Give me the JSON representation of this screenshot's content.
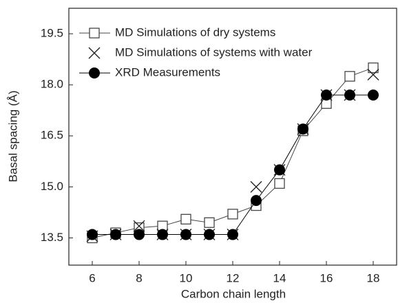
{
  "chart_data": {
    "type": "line",
    "x_label": "Carbon chain length",
    "y_label": "Basal spacing (Å)",
    "x": [
      6,
      7,
      8,
      9,
      10,
      11,
      12,
      13,
      14,
      15,
      16,
      17,
      18
    ],
    "xlim": [
      5,
      19
    ],
    "xticks": [
      6,
      8,
      10,
      12,
      14,
      16,
      18
    ],
    "ylim": [
      12.7,
      20.25
    ],
    "yticks": [
      13.5,
      {
        "value": 15,
        "label": "15.0"
      },
      16.5,
      {
        "value": 18,
        "label": "18.0"
      },
      19.5
    ],
    "series": [
      {
        "name": "MD Simulations of dry systems",
        "color": "#444444",
        "marker": "square",
        "line": true,
        "values": [
          13.5,
          13.65,
          13.8,
          13.85,
          14.05,
          13.95,
          14.2,
          14.45,
          15.1,
          16.65,
          17.45,
          18.25,
          18.5
        ]
      },
      {
        "name": "MD Simulations of systems with water",
        "color": "#222222",
        "marker": "x",
        "line": false,
        "values": [
          13.55,
          13.6,
          13.85,
          13.6,
          13.6,
          13.6,
          13.6,
          15.0,
          15.5,
          16.7,
          17.7,
          17.7,
          18.3
        ]
      },
      {
        "name": "XRD Measurements",
        "color": "#000000",
        "marker": "circle",
        "line": true,
        "values": [
          13.6,
          13.6,
          13.6,
          13.6,
          13.6,
          13.6,
          13.6,
          14.6,
          15.5,
          16.7,
          17.7,
          17.7,
          17.7
        ]
      }
    ],
    "legend": "upper left"
  }
}
